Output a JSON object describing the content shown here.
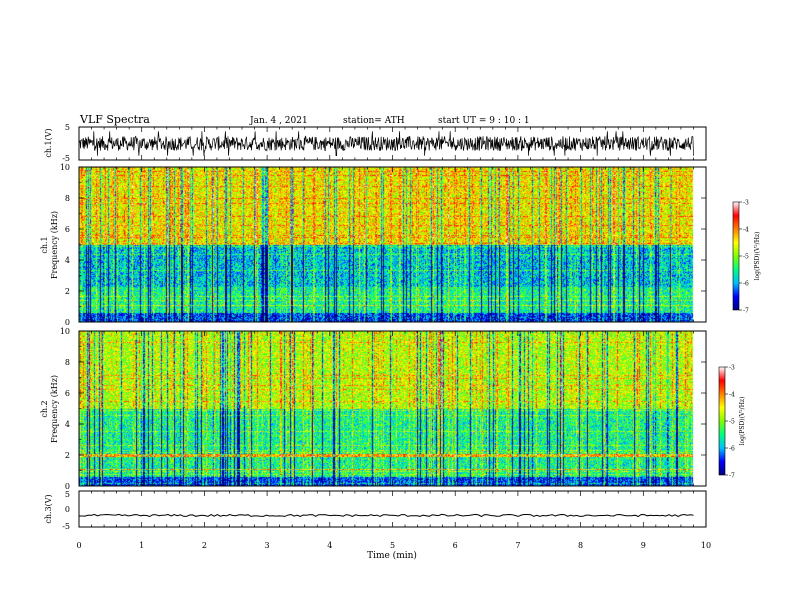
{
  "header": {
    "title": "VLF Spectra",
    "date": "Jan. 4 , 2021",
    "station": "station= ATH",
    "start": "start UT = 9 : 10 : 1"
  },
  "chart_data": [
    {
      "type": "line",
      "panel": "ch1-waveform",
      "ylabel": "ch.1(V)",
      "ylim": [
        -5,
        5
      ],
      "yticks": [
        "5",
        "-5"
      ],
      "xlim": [
        0,
        10
      ],
      "x_extent_end": 9.8,
      "y_center": 0,
      "approx_amplitude": 2.2,
      "color": "#000000"
    },
    {
      "type": "heatmap",
      "panel": "ch1-spectrogram",
      "ylabel_line1": "ch.1",
      "ylabel_line2": "Frequency (kHz)",
      "ylim": [
        0,
        10
      ],
      "yticks": [
        "0",
        "2",
        "4",
        "6",
        "8",
        "10"
      ],
      "xlim": [
        0,
        10
      ],
      "x_extent_end": 9.8,
      "colorbar": {
        "range": [
          -7,
          -3
        ],
        "ticks": [
          "-3",
          "-4",
          "-5",
          "-6",
          "-7"
        ],
        "label": "log(PSD)(V²/Hz)",
        "colormap": [
          "#000080",
          "#0000ff",
          "#00c0ff",
          "#00ff80",
          "#80ff00",
          "#ffff00",
          "#ff8000",
          "#ff0000",
          "#ffffff"
        ]
      }
    },
    {
      "type": "heatmap",
      "panel": "ch2-spectrogram",
      "ylabel_line1": "ch.2",
      "ylabel_line2": "Frequency (kHz)",
      "ylim": [
        0,
        10
      ],
      "yticks": [
        "0",
        "2",
        "4",
        "6",
        "8",
        "10"
      ],
      "xlim": [
        0,
        10
      ],
      "x_extent_end": 9.8,
      "colorbar": {
        "range": [
          -7,
          -3
        ],
        "ticks": [
          "-3",
          "-4",
          "-5",
          "-6",
          "-7"
        ],
        "label": "log(PSD)(V²/Hz)",
        "colormap": [
          "#000080",
          "#0000ff",
          "#00c0ff",
          "#00ff80",
          "#80ff00",
          "#ffff00",
          "#ff8000",
          "#ff0000",
          "#ffffff"
        ]
      }
    },
    {
      "type": "line",
      "panel": "ch3-waveform",
      "ylabel": "ch.3(V)",
      "ylim": [
        -5,
        5
      ],
      "yticks": [
        "5",
        "0",
        "-5"
      ],
      "xlim": [
        0,
        10
      ],
      "x_extent_end": 9.8,
      "y_center": -1.8,
      "approx_amplitude": 0.3,
      "xlabel": "Time (min)",
      "xticks": [
        "0",
        "1",
        "2",
        "3",
        "4",
        "5",
        "6",
        "7",
        "8",
        "9",
        "10"
      ],
      "color": "#000000"
    }
  ]
}
